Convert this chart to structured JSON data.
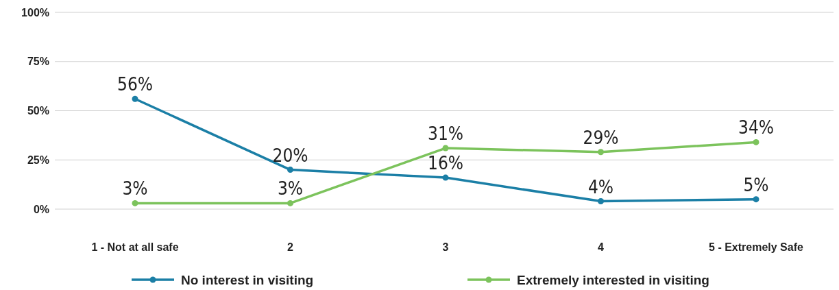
{
  "chart_data": {
    "type": "line",
    "categories": [
      "1 - Not at all safe",
      "2",
      "3",
      "4",
      "5 - Extremely Safe"
    ],
    "series": [
      {
        "name": "No interest in visiting",
        "color": "#1b7fa6",
        "values": [
          56,
          20,
          16,
          4,
          5
        ],
        "value_labels": [
          "56%",
          "20%",
          "16%",
          "4%",
          "5%"
        ]
      },
      {
        "name": "Extremely interested in visiting",
        "color": "#7cc35c",
        "values": [
          3,
          3,
          31,
          29,
          34
        ],
        "value_labels": [
          "3%",
          "3%",
          "31%",
          "29%",
          "34%"
        ]
      }
    ],
    "ylim": [
      0,
      100
    ],
    "yticks": [
      {
        "value": 0,
        "label": "0%"
      },
      {
        "value": 25,
        "label": "25%"
      },
      {
        "value": 50,
        "label": "50%"
      },
      {
        "value": 75,
        "label": "75%"
      },
      {
        "value": 100,
        "label": "100%"
      }
    ],
    "grid": "y",
    "legend": "bottom",
    "marker": "circle",
    "line_style": "solid"
  }
}
